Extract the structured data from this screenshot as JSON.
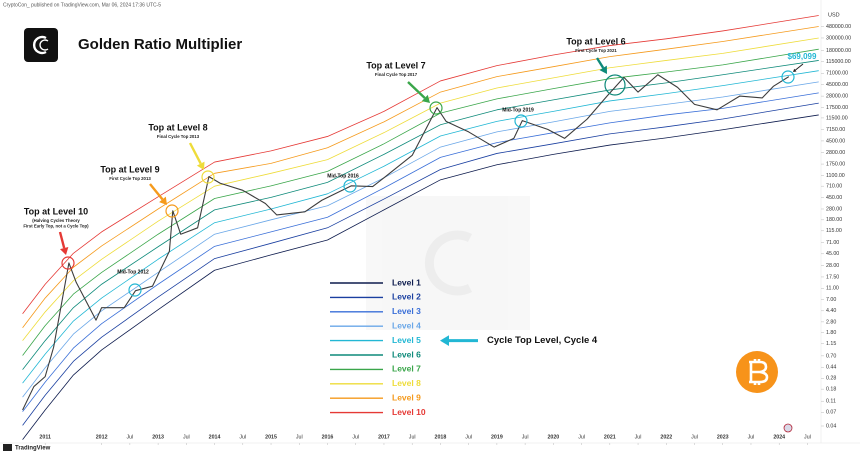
{
  "header": {
    "attribution": "CryptoCon_ published on TradingView.com, Mar 06, 2024 17:36 UTC-5",
    "title": "Golden Ratio Multiplier",
    "footer": "TradingView",
    "currency": "USD"
  },
  "chart_data": [
    {
      "type": "line",
      "log_scale": true,
      "xlim": [
        2010.2,
        2024.74
      ],
      "xticks": [
        2011,
        2012,
        {
          "value": 2012.5,
          "label": "Jul"
        },
        2013,
        {
          "value": 2013.5,
          "label": "Jul"
        },
        2014,
        {
          "value": 2014.5,
          "label": "Jul"
        },
        2015,
        {
          "value": 2015.5,
          "label": "Jul"
        },
        2016,
        {
          "value": 2016.5,
          "label": "Jul"
        },
        2017,
        {
          "value": 2017.5,
          "label": "Jul"
        },
        2018,
        {
          "value": 2018.5,
          "label": "Jul"
        },
        2019,
        {
          "value": 2019.5,
          "label": "Jul"
        },
        2020,
        {
          "value": 2020.5,
          "label": "Jul"
        },
        2021,
        {
          "value": 2021.5,
          "label": "Jul"
        },
        2022,
        {
          "value": 2022.5,
          "label": "Jul"
        },
        2023,
        {
          "value": 2023.5,
          "label": "Jul"
        },
        2024,
        {
          "value": 2024.5,
          "label": "Jul"
        }
      ],
      "ylim": [
        0.02,
        1200000
      ],
      "yticks": [
        {
          "value": 480000,
          "label": "480000.00"
        },
        {
          "value": 300000,
          "label": "300000.00"
        },
        {
          "value": 180000,
          "label": "180000.00"
        },
        {
          "value": 115000,
          "label": "115000.00"
        },
        {
          "value": 71000,
          "label": "71000.00"
        },
        {
          "value": 45000,
          "label": "45000.00"
        },
        {
          "value": 28000,
          "label": "28000.00"
        },
        {
          "value": 17500,
          "label": "17500.00"
        },
        {
          "value": 11500,
          "label": "11500.00"
        },
        {
          "value": 7150,
          "label": "7150.00"
        },
        {
          "value": 4500,
          "label": "4500.00"
        },
        {
          "value": 2800,
          "label": "2800.00"
        },
        {
          "value": 1750,
          "label": "1750.00"
        },
        {
          "value": 1100,
          "label": "1100.00"
        },
        {
          "value": 710,
          "label": "710.00"
        },
        {
          "value": 450,
          "label": "450.00"
        },
        {
          "value": 280,
          "label": "280.00"
        },
        {
          "value": 180,
          "label": "180.00"
        },
        {
          "value": 115,
          "label": "115.00"
        },
        {
          "value": 71,
          "label": "71.00"
        },
        {
          "value": 45,
          "label": "45.00"
        },
        {
          "value": 28,
          "label": "28.00"
        },
        {
          "value": 17.5,
          "label": "17.50"
        },
        {
          "value": 11,
          "label": "11.00"
        },
        {
          "value": 7,
          "label": "7.00"
        },
        {
          "value": 4.4,
          "label": "4.40"
        },
        {
          "value": 2.8,
          "label": "2.80"
        },
        {
          "value": 1.8,
          "label": "1.80"
        },
        {
          "value": 1.15,
          "label": "1.15"
        },
        {
          "value": 0.7,
          "label": "0.70"
        },
        {
          "value": 0.44,
          "label": "0.44"
        },
        {
          "value": 0.28,
          "label": "0.28"
        },
        {
          "value": 0.18,
          "label": "0.18"
        },
        {
          "value": 0.11,
          "label": "0.11"
        },
        {
          "value": 0.07,
          "label": "0.07"
        },
        {
          "value": 0.04,
          "label": "0.04"
        }
      ],
      "x": [
        2010.6,
        2011,
        2011.5,
        2012,
        2013,
        2014,
        2015,
        2016,
        2017,
        2018,
        2019,
        2020,
        2021,
        2022,
        2023,
        2024.7
      ],
      "series": [
        {
          "name": "Level 1",
          "color": "#0d1b4d",
          "values": [
            0.023,
            0.077,
            0.32,
            0.89,
            4.6,
            23,
            43,
            79,
            270,
            920,
            1700,
            2600,
            3800,
            5100,
            7100,
            13000
          ]
        },
        {
          "name": "Level 2",
          "color": "#1a3fa0",
          "values": [
            0.041,
            0.14,
            0.56,
            1.5,
            7.7,
            37,
            69,
            130,
            420,
            1400,
            2700,
            4000,
            6000,
            8000,
            11000,
            21000
          ]
        },
        {
          "name": "Level 3",
          "color": "#3a6fd8",
          "values": [
            0.072,
            0.24,
            0.96,
            2.6,
            13,
            61,
            110,
            200,
            660,
            2300,
            4200,
            6300,
            9400,
            13000,
            17000,
            32000
          ]
        },
        {
          "name": "Level 4",
          "color": "#6aa7e8",
          "values": [
            0.13,
            0.43,
            1.7,
            4.4,
            21,
            100,
            180,
            320,
            1000,
            3500,
            6500,
            9800,
            15000,
            20000,
            27000,
            50000
          ]
        },
        {
          "name": "Level 5",
          "color": "#22b7d4",
          "values": [
            0.23,
            0.75,
            2.9,
            7.4,
            36,
            160,
            280,
            520,
            1600,
            5500,
            10000,
            15000,
            23000,
            31000,
            43000,
            79000
          ]
        },
        {
          "name": "Level 6",
          "color": "#0e8a7a",
          "values": [
            0.4,
            1.3,
            5,
            13,
            60,
            270,
            450,
            830,
            2600,
            8700,
            16000,
            24000,
            36000,
            48000,
            67000,
            120000
          ]
        },
        {
          "name": "Level 7",
          "color": "#3aa64a",
          "values": [
            0.71,
            2.4,
            8.7,
            21,
            100,
            430,
            720,
            1300,
            4000,
            14000,
            25000,
            38000,
            57000,
            75000,
            100000,
            190000
          ]
        },
        {
          "name": "Level 8",
          "color": "#eedc3a",
          "values": [
            1.3,
            4.2,
            15,
            36,
            170,
            710,
            1200,
            2100,
            6300,
            21000,
            39000,
            59000,
            89000,
            120000,
            160000,
            300000
          ]
        },
        {
          "name": "Level 9",
          "color": "#f59a1c",
          "values": [
            2.2,
            7.4,
            26,
            62,
            280,
            1200,
            1800,
            3400,
            9800,
            33000,
            62000,
            93000,
            140000,
            190000,
            260000,
            480000
          ]
        },
        {
          "name": "Level 10",
          "color": "#e53935",
          "values": [
            3.9,
            13,
            46,
            110,
            460,
            1900,
            3000,
            5400,
            15000,
            52000,
            97000,
            150000,
            220000,
            290000,
            400000,
            750000
          ]
        }
      ],
      "legend_note": "Cycle Top Level, Cycle 4",
      "annotations": [
        {
          "text": "Top at Level 10",
          "note": [
            "(Halving Cycles Theory",
            "First Early Top, not a Cycle Top)"
          ],
          "color": "#e53935"
        },
        {
          "text": "Mid-Top 2012",
          "color": "#22b7d4"
        },
        {
          "text": "Top at Level 9",
          "note": [
            "First Cycle Top 2013"
          ],
          "color": "#f59a1c"
        },
        {
          "text": "Top at Level 8",
          "note": [
            "Final Cycle Top 2013"
          ],
          "color": "#eedc3a"
        },
        {
          "text": "Mid-Top 2016",
          "color": "#22b7d4"
        },
        {
          "text": "Top at Level 7",
          "note": [
            "Final Cycle Top 2017"
          ],
          "color": "#3aa64a"
        },
        {
          "text": "Mid-Top 2019",
          "color": "#22b7d4"
        },
        {
          "text": "Top at Level 6",
          "note": [
            "First Cycle Top 2021"
          ],
          "color": "#0e8a7a"
        },
        {
          "text": "$69,099",
          "color": "#22b7d4"
        }
      ]
    },
    {
      "type": "line",
      "name": "BTC price",
      "color": "#3d3d3d",
      "x": [
        2010.6,
        2010.8,
        2011,
        2011.15,
        2011.42,
        2011.55,
        2011.9,
        2012,
        2012.4,
        2012.6,
        2012.9,
        2013.2,
        2013.26,
        2013.4,
        2013.7,
        2013.9,
        2014.1,
        2014.5,
        2014.9,
        2015.1,
        2015.6,
        2015.9,
        2016.42,
        2016.8,
        2017,
        2017.5,
        2017.94,
        2018.1,
        2018.5,
        2018.95,
        2019.3,
        2019.45,
        2019.9,
        2020.2,
        2020.6,
        2020.95,
        2021.25,
        2021.5,
        2021.85,
        2022.2,
        2022.5,
        2022.9,
        2023.3,
        2023.7,
        2023.9,
        2024.17
      ],
      "values": [
        0.077,
        0.2,
        0.3,
        1,
        31,
        14,
        3,
        5,
        5,
        10,
        12,
        50,
        260,
        100,
        130,
        1050,
        800,
        600,
        350,
        220,
        250,
        400,
        720,
        700,
        1000,
        2500,
        17500,
        10000,
        6500,
        3500,
        5000,
        10300,
        7200,
        5000,
        11000,
        28000,
        60000,
        33000,
        67000,
        40000,
        20000,
        16000,
        28000,
        26000,
        42000,
        62000
      ]
    }
  ]
}
